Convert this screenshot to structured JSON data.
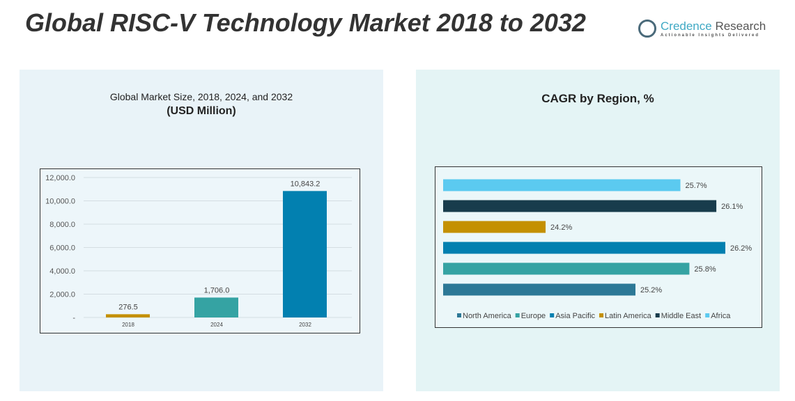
{
  "header": {
    "title": "Global RISC-V Technology Market 2018 to 2032",
    "logo_name": "Credence",
    "logo_name2": "Research",
    "logo_tagline": "Actionable Insights Delivered"
  },
  "left_panel": {
    "subtitle": "Global Market Size, 2018, 2024, and 2032",
    "unit": "(USD Million)"
  },
  "right_panel": {
    "subtitle": "CAGR by Region, %"
  },
  "chart_data": [
    {
      "type": "bar",
      "title": "Global Market Size, 2018, 2024, and 2032 (USD Million)",
      "categories": [
        "2018",
        "2024",
        "2032"
      ],
      "values": [
        276.5,
        1706.0,
        10843.2
      ],
      "value_labels": [
        "276.5",
        "1,706.0",
        "10,843.2"
      ],
      "colors": [
        "#c49000",
        "#35a3a3",
        "#0280b0"
      ],
      "ylim": [
        0,
        12000
      ],
      "yticks": [
        "-",
        "2,000.0",
        "4,000.0",
        "6,000.0",
        "8,000.0",
        "10,000.0",
        "12,000.0"
      ],
      "grid": true
    },
    {
      "type": "bar",
      "orientation": "horizontal",
      "title": "CAGR by Region, %",
      "series": [
        {
          "name": "Africa",
          "value": 25.7,
          "label": "25.7%",
          "color": "#5bcaf0"
        },
        {
          "name": "Middle East",
          "value": 26.1,
          "label": "26.1%",
          "color": "#183c4c"
        },
        {
          "name": "Latin America",
          "value": 24.2,
          "label": "24.2%",
          "color": "#c49000"
        },
        {
          "name": "Asia Pacific",
          "value": 26.2,
          "label": "26.2%",
          "color": "#0280b0"
        },
        {
          "name": "Europe",
          "value": 25.8,
          "label": "25.8%",
          "color": "#35a3a3"
        },
        {
          "name": "North America",
          "value": 25.2,
          "label": "25.2%",
          "color": "#2c7896"
        }
      ],
      "legend": [
        "North America",
        "Europe",
        "Asia Pacific",
        "Latin America",
        "Middle East",
        "Africa"
      ],
      "legend_placement": "bottom",
      "xlim": [
        23.06,
        26.2
      ]
    }
  ]
}
